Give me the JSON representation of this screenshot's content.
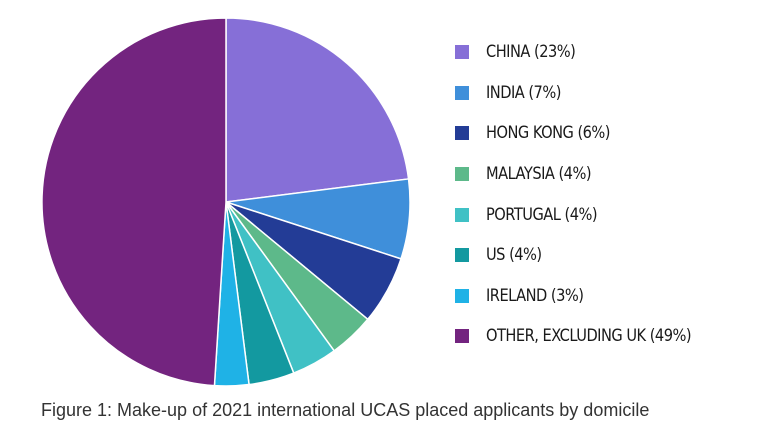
{
  "caption": "Figure 1: Make-up of 2021 international UCAS placed applicants by domicile",
  "chart_data": {
    "type": "pie",
    "title": "",
    "legend_position": "right",
    "slices": [
      {
        "label": "CHINA (23%)",
        "value": 23,
        "color": "#866FD7"
      },
      {
        "label": "INDIA (7%)",
        "value": 7,
        "color": "#3F8FDA"
      },
      {
        "label": "HONG KONG (6%)",
        "value": 6,
        "color": "#233C96"
      },
      {
        "label": "MALAYSIA (4%)",
        "value": 4,
        "color": "#5DB98A"
      },
      {
        "label": "PORTUGAL (4%)",
        "value": 4,
        "color": "#40C1C5"
      },
      {
        "label": "US (4%)",
        "value": 4,
        "color": "#1399A0"
      },
      {
        "label": "IRELAND (3%)",
        "value": 3,
        "color": "#1FB2E6"
      },
      {
        "label": "OTHER, EXCLUDING UK (49%)",
        "value": 49,
        "color": "#73247F"
      }
    ]
  }
}
